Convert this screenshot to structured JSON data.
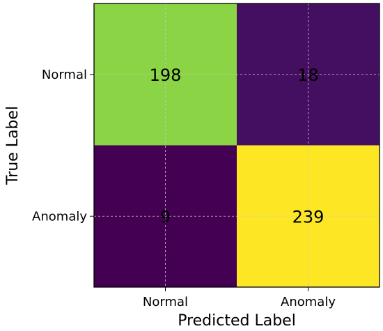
{
  "chart_data": {
    "type": "heatmap",
    "title": "",
    "xlabel": "Predicted Label",
    "ylabel": "True Label",
    "x_categories": [
      "Normal",
      "Anomaly"
    ],
    "y_categories": [
      "Normal",
      "Anomaly"
    ],
    "values": [
      [
        198,
        18
      ],
      [
        9,
        239
      ]
    ],
    "colormap": "viridis",
    "color_range": [
      9,
      239
    ],
    "grid": true,
    "colors": {
      "low": "#440154",
      "high": "#fde725",
      "grid": "#c8c8c8",
      "text": "#000000"
    }
  }
}
